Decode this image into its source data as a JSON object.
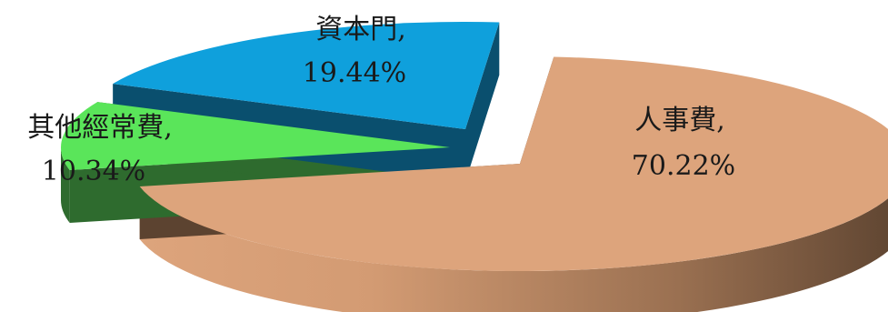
{
  "chart_data": {
    "type": "pie",
    "style": "3d-exploded",
    "title": "",
    "slices": [
      {
        "name": "人事費",
        "value": 70.22,
        "value_label": "70.22%",
        "label": "人事費,",
        "color": "#DDA47C",
        "side_dark": "#5C4330"
      },
      {
        "name": "其他經常費",
        "value": 10.34,
        "value_label": "10.34%",
        "label": "其他經常費,",
        "color": "#5AE55A",
        "side_dark": "#2E6B2E"
      },
      {
        "name": "資本門",
        "value": 19.44,
        "value_label": "19.44%",
        "label": "資本門,",
        "color": "#0FA0DC",
        "side_dark": "#0A4F6E"
      }
    ],
    "legend": "none",
    "data_labels": "category and percentage on slice"
  }
}
